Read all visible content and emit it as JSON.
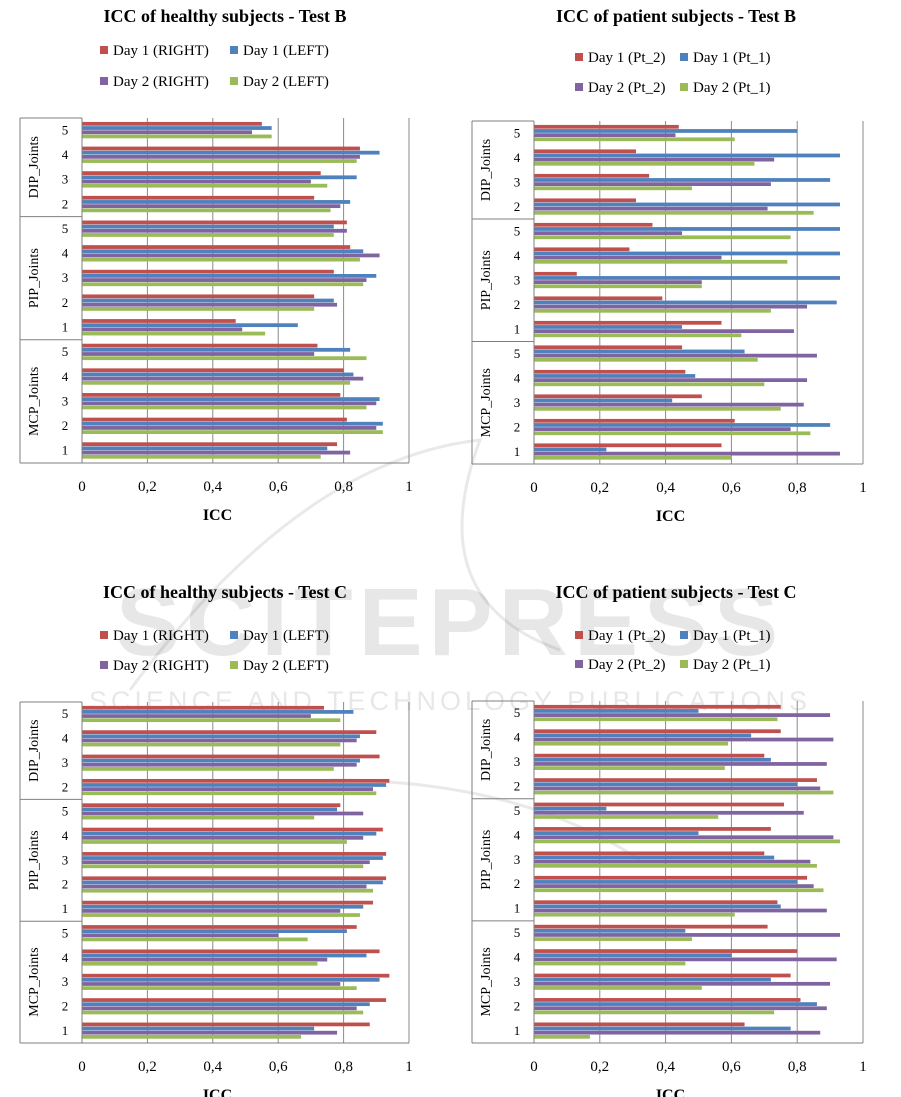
{
  "watermark": {
    "line1": "SCITEPRESS",
    "line2": "SCIENCE AND TECHNOLOGY PUBLICATIONS"
  },
  "chart_data": [
    {
      "type": "bar",
      "orientation": "horizontal",
      "title": "ICC of healthy subjects - Test B",
      "xlabel": "ICC",
      "xlim": [
        0,
        1
      ],
      "xticks": [
        "0",
        "0,2",
        "0,4",
        "0,6",
        "0,8",
        "1"
      ],
      "groups": [
        {
          "name": "DIP_Joints",
          "categories": [
            "5",
            "4",
            "3",
            "2"
          ]
        },
        {
          "name": "PIP_Joints",
          "categories": [
            "5",
            "4",
            "3",
            "2",
            "1"
          ]
        },
        {
          "name": "MCP_Joints",
          "categories": [
            "5",
            "4",
            "3",
            "2",
            "1"
          ]
        }
      ],
      "legend": "top",
      "series": [
        {
          "name": "Day 1 (RIGHT)",
          "color": "#c0504d",
          "values": [
            0.55,
            0.85,
            0.73,
            0.71,
            0.81,
            0.82,
            0.77,
            0.71,
            0.47,
            0.72,
            0.8,
            0.79,
            0.81,
            0.78
          ]
        },
        {
          "name": "Day 1 (LEFT)",
          "color": "#4f81bd",
          "values": [
            0.58,
            0.91,
            0.84,
            0.82,
            0.77,
            0.86,
            0.9,
            0.77,
            0.66,
            0.82,
            0.83,
            0.91,
            0.92,
            0.75
          ]
        },
        {
          "name": "Day 2 (RIGHT)",
          "color": "#8064a2",
          "values": [
            0.52,
            0.85,
            0.7,
            0.79,
            0.81,
            0.91,
            0.87,
            0.78,
            0.49,
            0.71,
            0.86,
            0.9,
            0.9,
            0.82
          ]
        },
        {
          "name": "Day 2 (LEFT)",
          "color": "#9bbb59",
          "values": [
            0.58,
            0.84,
            0.75,
            0.76,
            0.77,
            0.85,
            0.86,
            0.71,
            0.56,
            0.87,
            0.82,
            0.87,
            0.92,
            0.73
          ]
        }
      ]
    },
    {
      "type": "bar",
      "orientation": "horizontal",
      "title": "ICC of patient subjects - Test B",
      "xlabel": "ICC",
      "xlim": [
        0,
        1
      ],
      "xticks": [
        "0",
        "0,2",
        "0,4",
        "0,6",
        "0,8",
        "1"
      ],
      "groups": [
        {
          "name": "DIP_Joints",
          "categories": [
            "5",
            "4",
            "3",
            "2"
          ]
        },
        {
          "name": "PIP_Joints",
          "categories": [
            "5",
            "4",
            "3",
            "2",
            "1"
          ]
        },
        {
          "name": "MCP_Joints",
          "categories": [
            "5",
            "4",
            "3",
            "2",
            "1"
          ]
        }
      ],
      "legend": "top",
      "series": [
        {
          "name": "Day 1 (Pt_2)",
          "color": "#c0504d",
          "values": [
            0.44,
            0.31,
            0.35,
            0.31,
            0.36,
            0.29,
            0.13,
            0.39,
            0.57,
            0.45,
            0.46,
            0.51,
            0.61,
            0.57
          ]
        },
        {
          "name": "Day 1 (Pt_1)",
          "color": "#4f81bd",
          "values": [
            0.8,
            0.93,
            0.9,
            0.93,
            0.93,
            0.93,
            0.93,
            0.92,
            0.45,
            0.64,
            0.49,
            0.42,
            0.9,
            0.22
          ]
        },
        {
          "name": "Day 2 (Pt_2)",
          "color": "#8064a2",
          "values": [
            0.43,
            0.73,
            0.72,
            0.71,
            0.45,
            0.57,
            0.51,
            0.83,
            0.79,
            0.86,
            0.83,
            0.82,
            0.78,
            0.93
          ]
        },
        {
          "name": "Day 2 (Pt_1)",
          "color": "#9bbb59",
          "values": [
            0.61,
            0.67,
            0.48,
            0.85,
            0.78,
            0.77,
            0.51,
            0.72,
            0.63,
            0.68,
            0.7,
            0.75,
            0.84,
            0.6
          ]
        }
      ]
    },
    {
      "type": "bar",
      "orientation": "horizontal",
      "title": "ICC of healthy subjects - Test C",
      "xlabel": "ICC",
      "xlim": [
        0,
        1
      ],
      "xticks": [
        "0",
        "0,2",
        "0,4",
        "0,6",
        "0,8",
        "1"
      ],
      "groups": [
        {
          "name": "DIP_Joints",
          "categories": [
            "5",
            "4",
            "3",
            "2"
          ]
        },
        {
          "name": "PIP_Joints",
          "categories": [
            "5",
            "4",
            "3",
            "2",
            "1"
          ]
        },
        {
          "name": "MCP_Joints",
          "categories": [
            "5",
            "4",
            "3",
            "2",
            "1"
          ]
        }
      ],
      "legend": "top",
      "series": [
        {
          "name": "Day 1 (RIGHT)",
          "color": "#c0504d",
          "values": [
            0.74,
            0.9,
            0.91,
            0.94,
            0.79,
            0.92,
            0.93,
            0.93,
            0.89,
            0.84,
            0.91,
            0.94,
            0.93,
            0.88
          ]
        },
        {
          "name": "Day 1 (LEFT)",
          "color": "#4f81bd",
          "values": [
            0.83,
            0.85,
            0.85,
            0.93,
            0.78,
            0.9,
            0.92,
            0.92,
            0.86,
            0.81,
            0.87,
            0.91,
            0.88,
            0.71
          ]
        },
        {
          "name": "Day 2 (RIGHT)",
          "color": "#8064a2",
          "values": [
            0.7,
            0.84,
            0.84,
            0.89,
            0.86,
            0.86,
            0.88,
            0.87,
            0.79,
            0.6,
            0.75,
            0.79,
            0.84,
            0.78
          ]
        },
        {
          "name": "Day 2 (LEFT)",
          "color": "#9bbb59",
          "values": [
            0.79,
            0.79,
            0.77,
            0.9,
            0.71,
            0.81,
            0.86,
            0.89,
            0.85,
            0.69,
            0.72,
            0.84,
            0.86,
            0.67
          ]
        }
      ]
    },
    {
      "type": "bar",
      "orientation": "horizontal",
      "title": "ICC of patient subjects - Test C",
      "xlabel": "ICC",
      "xlim": [
        0,
        1
      ],
      "xticks": [
        "0",
        "0,2",
        "0,4",
        "0,6",
        "0,8",
        "1"
      ],
      "groups": [
        {
          "name": "DIP_Joints",
          "categories": [
            "5",
            "4",
            "3",
            "2"
          ]
        },
        {
          "name": "PIP_Joints",
          "categories": [
            "5",
            "4",
            "3",
            "2",
            "1"
          ]
        },
        {
          "name": "MCP_Joints",
          "categories": [
            "5",
            "4",
            "3",
            "2",
            "1"
          ]
        }
      ],
      "legend": "top",
      "series": [
        {
          "name": "Day 1 (Pt_2)",
          "color": "#c0504d",
          "values": [
            0.75,
            0.75,
            0.7,
            0.86,
            0.76,
            0.72,
            0.7,
            0.83,
            0.74,
            0.71,
            0.8,
            0.78,
            0.81,
            0.64
          ]
        },
        {
          "name": "Day 1 (Pt_1)",
          "color": "#4f81bd",
          "values": [
            0.5,
            0.66,
            0.72,
            0.8,
            0.22,
            0.5,
            0.73,
            0.8,
            0.75,
            0.46,
            0.6,
            0.72,
            0.86,
            0.78
          ]
        },
        {
          "name": "Day 2 (Pt_2)",
          "color": "#8064a2",
          "values": [
            0.9,
            0.91,
            0.89,
            0.87,
            0.82,
            0.91,
            0.84,
            0.85,
            0.89,
            0.93,
            0.92,
            0.9,
            0.89,
            0.87
          ]
        },
        {
          "name": "Day 2 (Pt_1)",
          "color": "#9bbb59",
          "values": [
            0.74,
            0.59,
            0.58,
            0.91,
            0.56,
            0.93,
            0.86,
            0.88,
            0.61,
            0.48,
            0.46,
            0.51,
            0.73,
            0.17
          ]
        }
      ]
    }
  ]
}
